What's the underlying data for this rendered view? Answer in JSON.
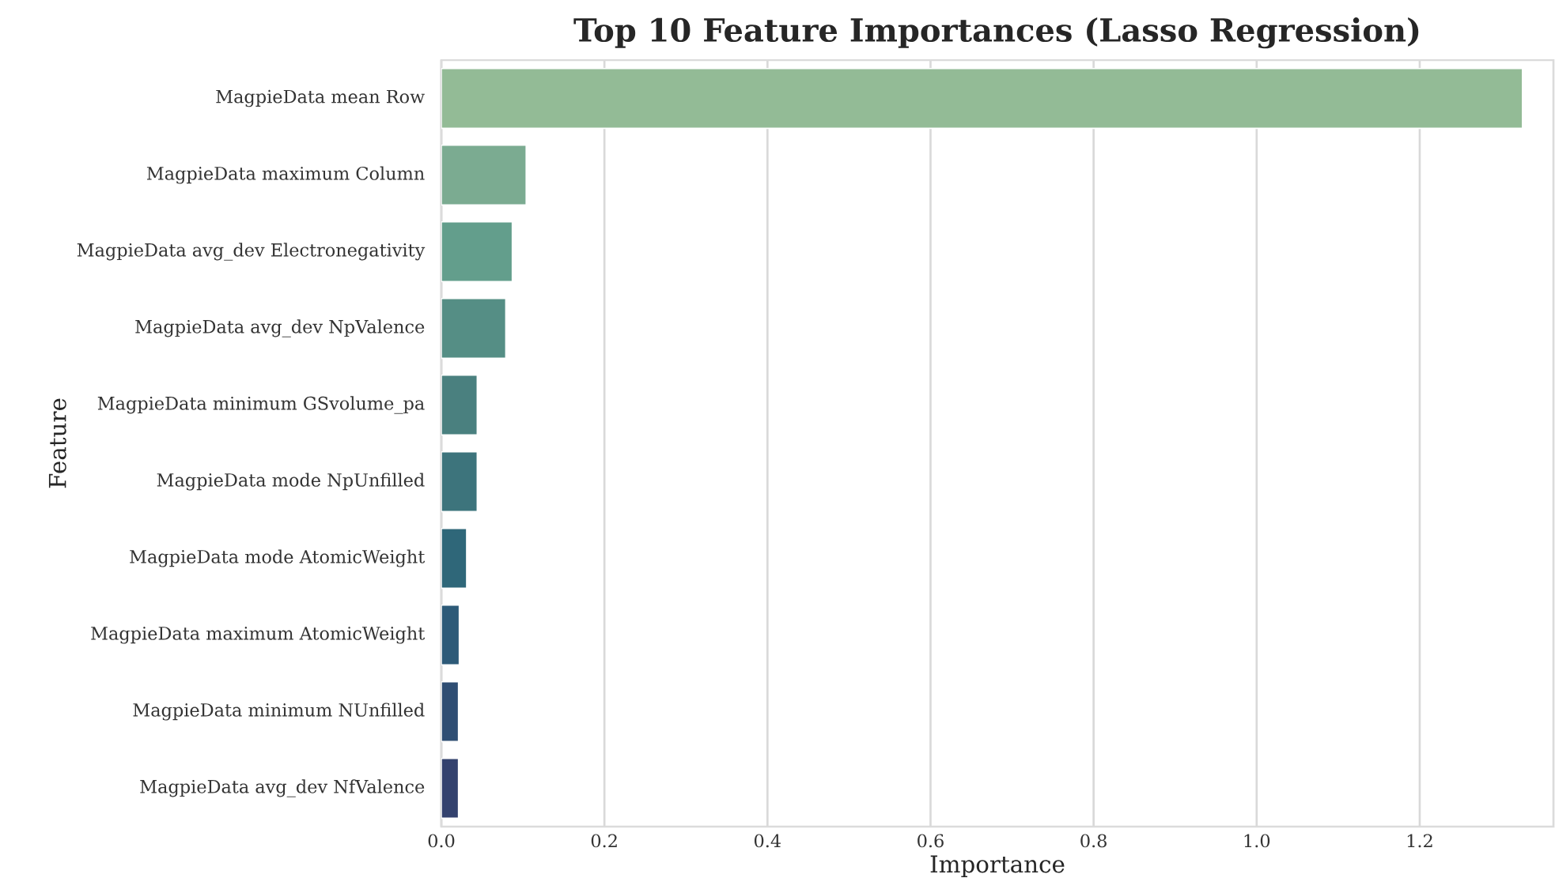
{
  "chart_data": {
    "type": "bar",
    "orientation": "horizontal",
    "title": "Top 10 Feature Importances (Lasso Regression)",
    "xlabel": "Importance",
    "ylabel": "Feature",
    "categories": [
      "MagpieData mean Row",
      "MagpieData maximum Column",
      "MagpieData avg_dev Electronegativity",
      "MagpieData avg_dev NpValence",
      "MagpieData minimum GSvolume_pa",
      "MagpieData mode NpUnfilled",
      "MagpieData mode AtomicWeight",
      "MagpieData maximum AtomicWeight",
      "MagpieData minimum NUnfilled",
      "MagpieData avg_dev NfValence"
    ],
    "values": [
      1.326,
      0.104,
      0.087,
      0.079,
      0.044,
      0.044,
      0.031,
      0.022,
      0.021,
      0.021
    ],
    "colors": [
      "#93bb96",
      "#7bab91",
      "#639e8c",
      "#558e85",
      "#4a807f",
      "#3d747c",
      "#2f6779",
      "#2d5a78",
      "#2f4e73",
      "#34426e"
    ],
    "xlim": [
      0,
      1.364
    ],
    "xticks": [
      {
        "value": 0,
        "label": "0.0"
      },
      0.2,
      0.4,
      0.6,
      0.8,
      {
        "value": 1,
        "label": "1.0"
      },
      1.2
    ],
    "grid": "x"
  }
}
